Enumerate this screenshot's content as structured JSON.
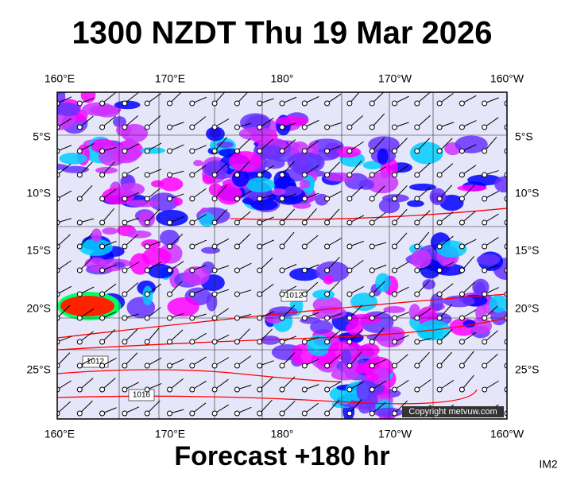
{
  "header": {
    "title": "1300 NZDT Thu 19 Mar 2026"
  },
  "map": {
    "top_longitudes": [
      "160°E",
      "170°E",
      "180°",
      "170°W",
      "160°W"
    ],
    "bottom_longitudes": [
      "160°E",
      "170°E",
      "180°",
      "170°W",
      "160°W"
    ],
    "left_latitudes": [
      "5°S",
      "10°S",
      "15°S",
      "20°S",
      "25°S"
    ],
    "right_latitudes": [
      "5°S",
      "10°S",
      "15°S",
      "20°S",
      "25°S"
    ],
    "isobar_labels": [
      "1012",
      "1012",
      "1016"
    ],
    "copyright": "Copyright metvuw.com"
  },
  "footer": {
    "forecast": "Forecast +180 hr",
    "image_id": "IM2"
  }
}
